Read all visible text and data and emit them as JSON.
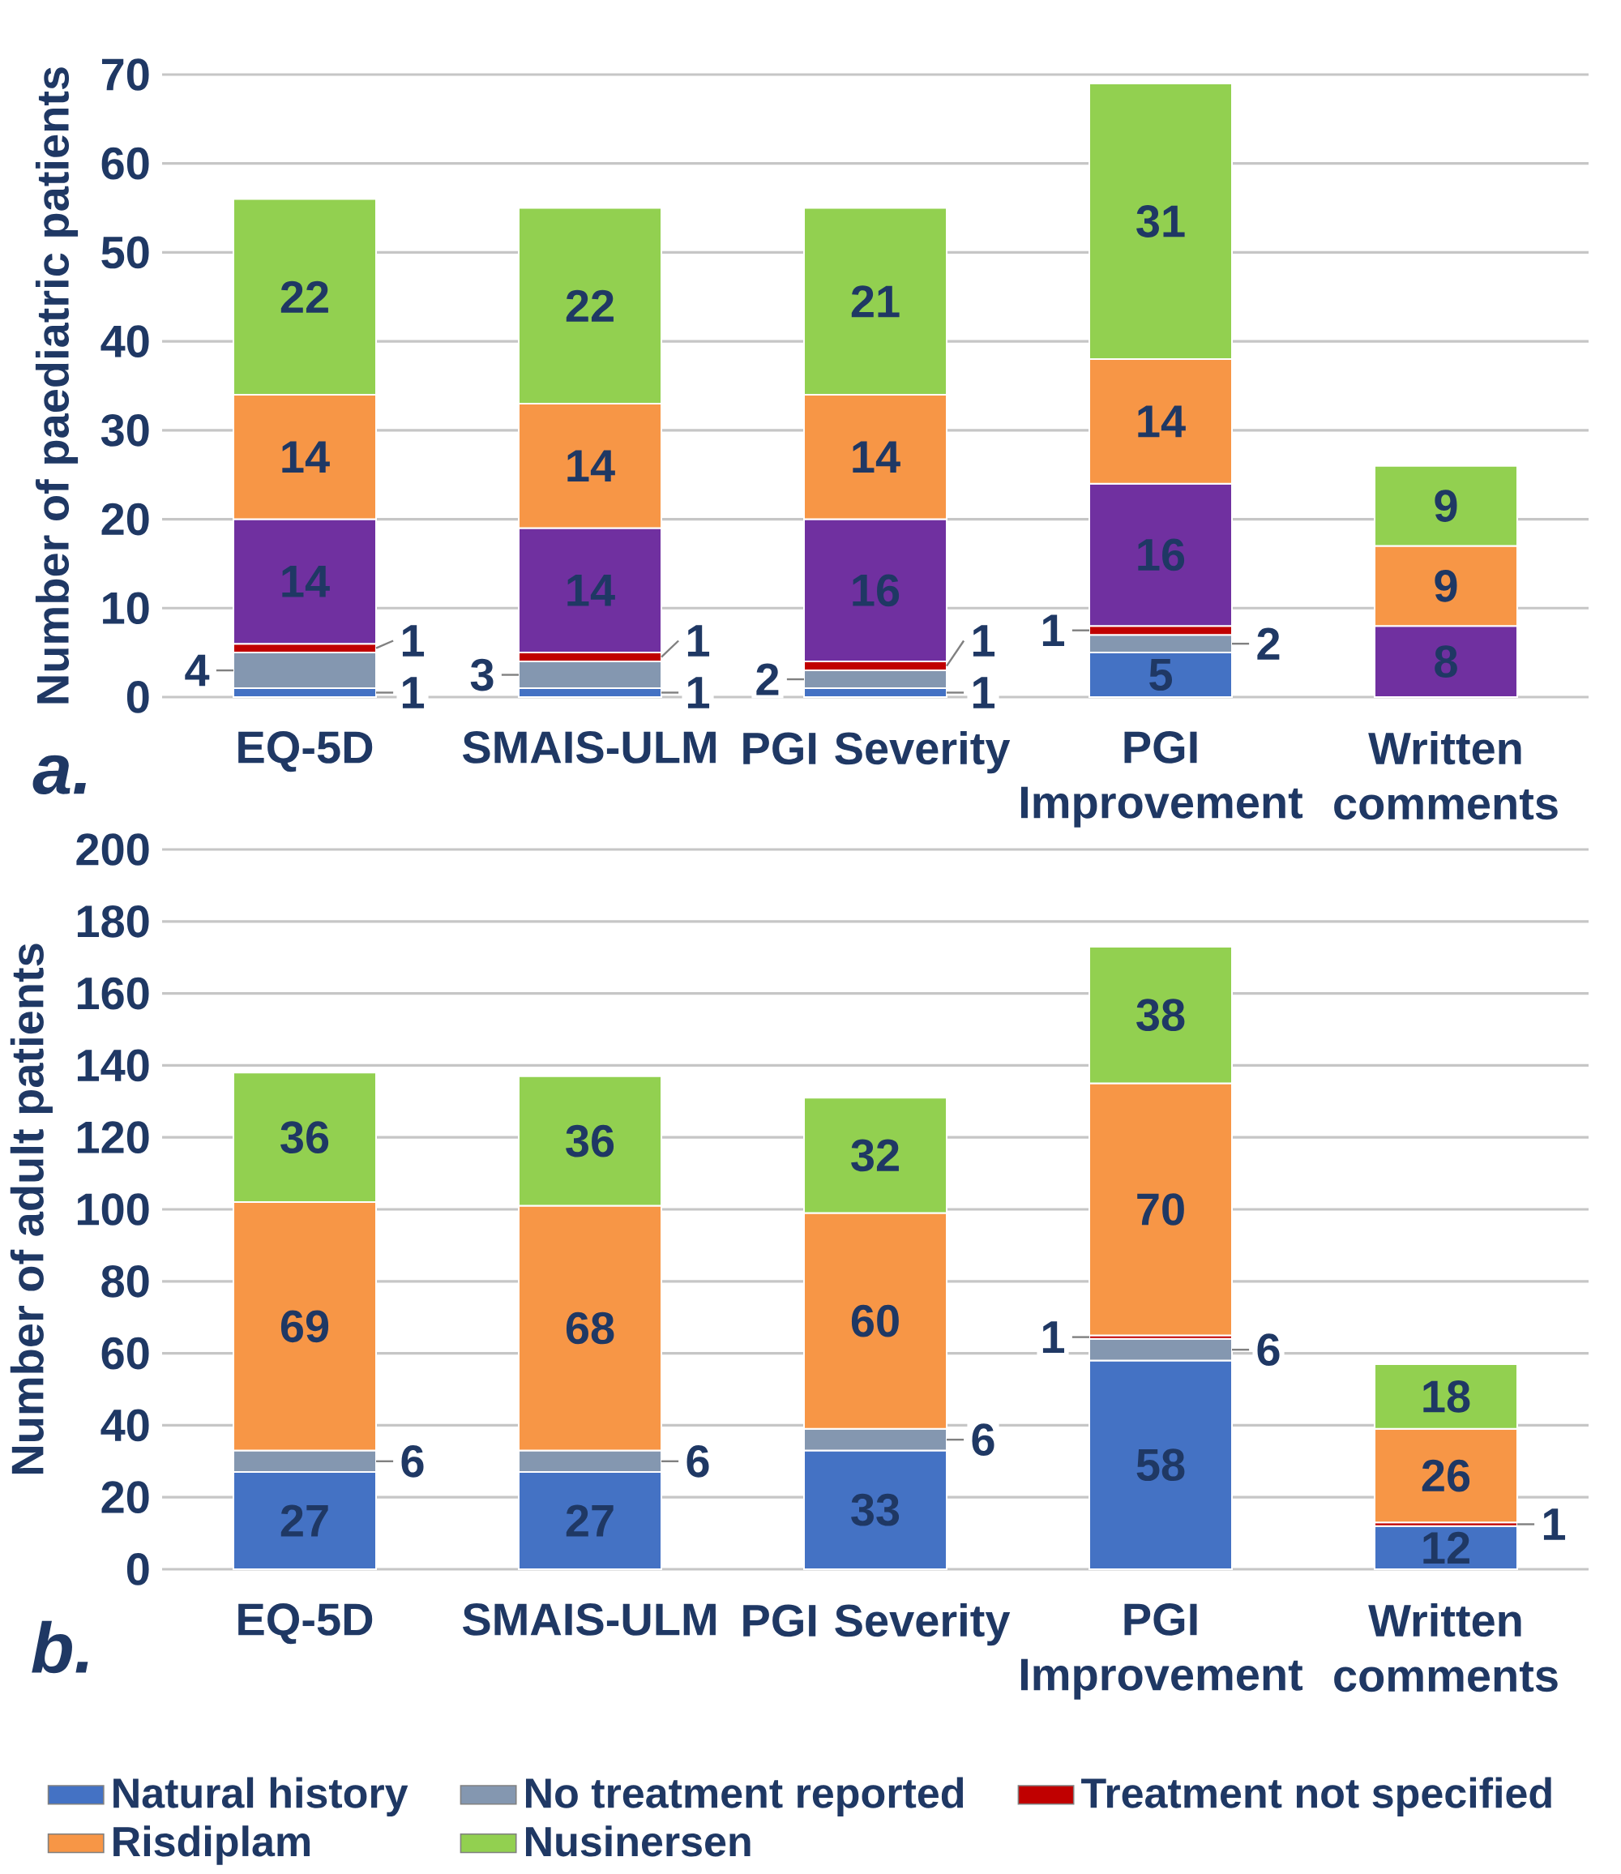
{
  "chart_data": [
    {
      "type": "bar",
      "title": "a.",
      "ylabel": "Number of paediatric patients",
      "stacked": true,
      "data_labels": true,
      "grid": "y",
      "categories": [
        "EQ-5D",
        "SMAIS-ULM",
        "PGI Severity",
        "PGI Improvement",
        "Written comments"
      ],
      "ylim": [
        0,
        70
      ],
      "yticks": [
        0,
        10,
        20,
        30,
        40,
        50,
        60,
        70
      ],
      "series": [
        {
          "color": "#4472c4",
          "values": [
            1,
            1,
            1,
            5,
            null
          ]
        },
        {
          "color": "#8497b0",
          "values": [
            4,
            3,
            2,
            2,
            null
          ]
        },
        {
          "color": "#c00000",
          "values": [
            1,
            1,
            1,
            1,
            null
          ]
        },
        {
          "color": "#7030a0",
          "values": [
            14,
            14,
            16,
            16,
            8
          ]
        },
        {
          "color": "#f79646",
          "values": [
            14,
            14,
            14,
            14,
            9
          ]
        },
        {
          "color": "#92d050",
          "values": [
            22,
            22,
            21,
            31,
            9
          ]
        }
      ]
    },
    {
      "type": "bar",
      "title": "b.",
      "ylabel": "Number of adult patients",
      "stacked": true,
      "data_labels": true,
      "grid": "y",
      "legend": "bottom",
      "categories": [
        "EQ-5D",
        "SMAIS-ULM",
        "PGI Severity",
        "PGI Improvement",
        "Written comments"
      ],
      "ylim": [
        0,
        200
      ],
      "yticks": [
        0,
        20,
        40,
        60,
        80,
        100,
        120,
        140,
        160,
        180,
        200
      ],
      "series": [
        {
          "name": "Natural history",
          "color": "#4472c4",
          "values": [
            27,
            27,
            33,
            58,
            12
          ]
        },
        {
          "name": "No treatment reported",
          "color": "#8497b0",
          "values": [
            6,
            6,
            6,
            6,
            null
          ]
        },
        {
          "name": "Treatment not specified",
          "color": "#c00000",
          "values": [
            null,
            null,
            null,
            1,
            1
          ]
        },
        {
          "name": "Risdiplam",
          "color": "#f79646",
          "values": [
            69,
            68,
            60,
            70,
            26
          ]
        },
        {
          "name": "Nusinersen",
          "color": "#92d050",
          "values": [
            36,
            36,
            32,
            38,
            18
          ]
        }
      ]
    }
  ]
}
